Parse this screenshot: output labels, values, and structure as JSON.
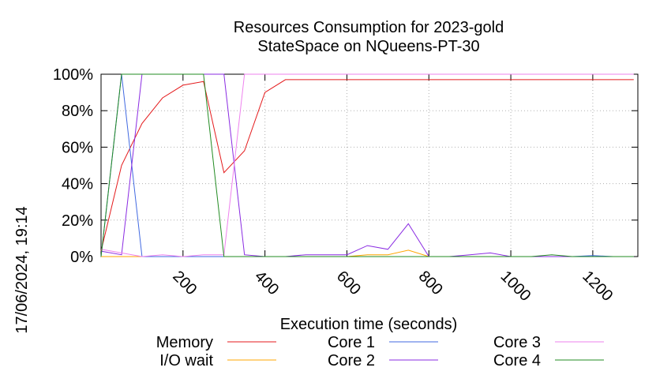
{
  "chart_data": {
    "type": "line",
    "title_line1": "Resources Consumption for 2023-gold",
    "title_line2": "StateSpace on NQueens-PT-30",
    "xlabel": "Execution time (seconds)",
    "ylabel": "",
    "side_label": "17/06/2024, 19:14",
    "xlim": [
      0,
      1310
    ],
    "ylim": [
      0,
      100
    ],
    "xticks": [
      200,
      400,
      600,
      800,
      1000,
      1200
    ],
    "xtick_labels": [
      "200",
      "400",
      "600",
      "800",
      "1000",
      "1200"
    ],
    "yticks": [
      0,
      20,
      40,
      60,
      80,
      100
    ],
    "ytick_labels": [
      "0%",
      "20%",
      "40%",
      "60%",
      "80%",
      "100%"
    ],
    "grid": true,
    "legend_placement": "bottom",
    "series": [
      {
        "name": "Memory",
        "color": "#e41a1c",
        "x": [
          0,
          50,
          100,
          150,
          200,
          250,
          300,
          350,
          400,
          450,
          500,
          550,
          600,
          650,
          700,
          750,
          800,
          850,
          900,
          950,
          1000,
          1050,
          1100,
          1150,
          1200,
          1250,
          1300
        ],
        "y": [
          3,
          50,
          73,
          87,
          94,
          96,
          46,
          58,
          90,
          97,
          97,
          97,
          97,
          97,
          97,
          97,
          97,
          97,
          97,
          97,
          97,
          97,
          97,
          97,
          97,
          97,
          97
        ]
      },
      {
        "name": "I/O wait",
        "color": "#ffa500",
        "x": [
          0,
          600,
          650,
          700,
          750,
          800,
          1300
        ],
        "y": [
          0,
          0,
          1,
          1,
          3.5,
          0,
          0
        ]
      },
      {
        "name": "Core 1",
        "color": "#4169e1",
        "x": [
          0,
          50,
          100,
          150,
          1150,
          1200,
          1250,
          1300
        ],
        "y": [
          0,
          100,
          0,
          0,
          0,
          0.5,
          0,
          0
        ]
      },
      {
        "name": "Core 2",
        "color": "#8a2be2",
        "x": [
          0,
          50,
          100,
          150,
          200,
          250,
          300,
          350,
          400,
          450,
          500,
          550,
          600,
          650,
          700,
          750,
          800,
          850,
          900,
          950,
          1000,
          1050,
          1300
        ],
        "y": [
          3,
          1,
          100,
          100,
          100,
          100,
          100,
          1,
          0,
          0,
          1,
          1,
          1,
          6,
          4,
          18,
          0,
          0,
          1,
          2,
          0,
          0,
          0
        ]
      },
      {
        "name": "Core 3",
        "color": "#ee82ee",
        "x": [
          0,
          100,
          150,
          200,
          250,
          300,
          350,
          400,
          1300
        ],
        "y": [
          4,
          0,
          1,
          0,
          1,
          1,
          100,
          100,
          100
        ]
      },
      {
        "name": "Core 4",
        "color": "#228b22",
        "x": [
          0,
          50,
          100,
          150,
          200,
          250,
          300,
          1050,
          1100,
          1150,
          1300
        ],
        "y": [
          0,
          100,
          100,
          100,
          100,
          100,
          0,
          0,
          1,
          0,
          0
        ]
      }
    ]
  }
}
